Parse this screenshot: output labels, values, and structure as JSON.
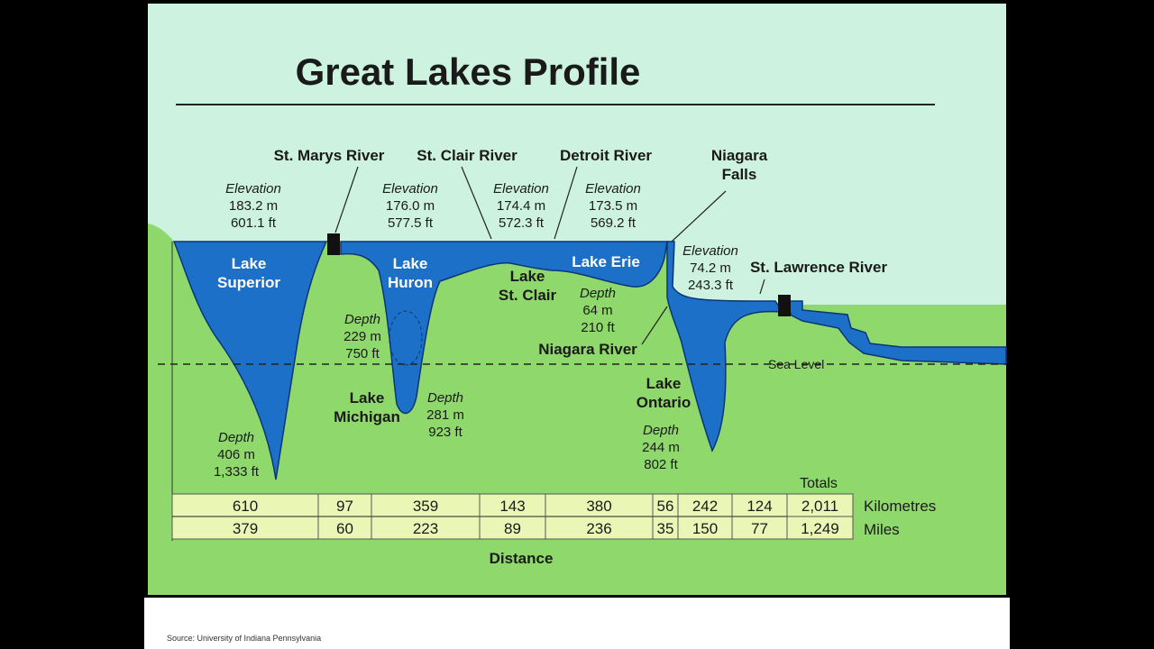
{
  "header": {
    "title": "Great Lakes Profile"
  },
  "labels": [
    {
      "lines": [
        "St. Marys River"
      ]
    },
    {
      "lines": [
        "St. Clair River"
      ]
    },
    {
      "lines": [
        "Detroit River"
      ]
    },
    {
      "lines": [
        "Niagara",
        "Falls"
      ]
    },
    {
      "lines": [
        "St. Lawrence River"
      ]
    },
    {
      "lines": [
        "Niagara River"
      ]
    },
    {
      "lines": [
        "Elevation",
        "183.2 m",
        "601.1 ft"
      ]
    },
    {
      "lines": [
        "Elevation",
        "176.0 m",
        "577.5 ft"
      ]
    },
    {
      "lines": [
        "Elevation",
        "174.4 m",
        "572.3 ft"
      ]
    },
    {
      "lines": [
        "Elevation",
        "173.5 m",
        "569.2 ft"
      ]
    },
    {
      "lines": [
        "Elevation",
        "74.2 m",
        "243.3 ft"
      ]
    },
    {
      "lines": [
        "Lake",
        "Superior"
      ]
    },
    {
      "lines": [
        "Lake",
        "Huron"
      ]
    },
    {
      "lines": [
        "Lake",
        "St. Clair"
      ]
    },
    {
      "lines": [
        "Lake Erie"
      ]
    },
    {
      "lines": [
        "Lake",
        "Michigan"
      ]
    },
    {
      "lines": [
        "Lake",
        "Ontario"
      ]
    },
    {
      "lines": [
        "Depth",
        "406 m",
        "1,333 ft"
      ]
    },
    {
      "lines": [
        "Depth",
        "229 m",
        "750 ft"
      ]
    },
    {
      "lines": [
        "Depth",
        "281 m",
        "923 ft"
      ]
    },
    {
      "lines": [
        "Depth",
        "64 m",
        "210 ft"
      ]
    },
    {
      "lines": [
        "Depth",
        "244 m",
        "802 ft"
      ]
    }
  ],
  "sea_level": "Sea Level",
  "distance": {
    "totals_header": "Totals",
    "kilometres_label": "Kilometres",
    "miles_label": "Miles",
    "caption": "Distance",
    "kilometres": [
      "610",
      "97",
      "359",
      "143",
      "380",
      "56",
      "242",
      "124",
      "2,011"
    ],
    "miles": [
      "379",
      "60",
      "223",
      "89",
      "236",
      "35",
      "150",
      "77",
      "1,249"
    ]
  },
  "footer": {
    "source": "Source: University of Indiana Pennsylvania"
  }
}
